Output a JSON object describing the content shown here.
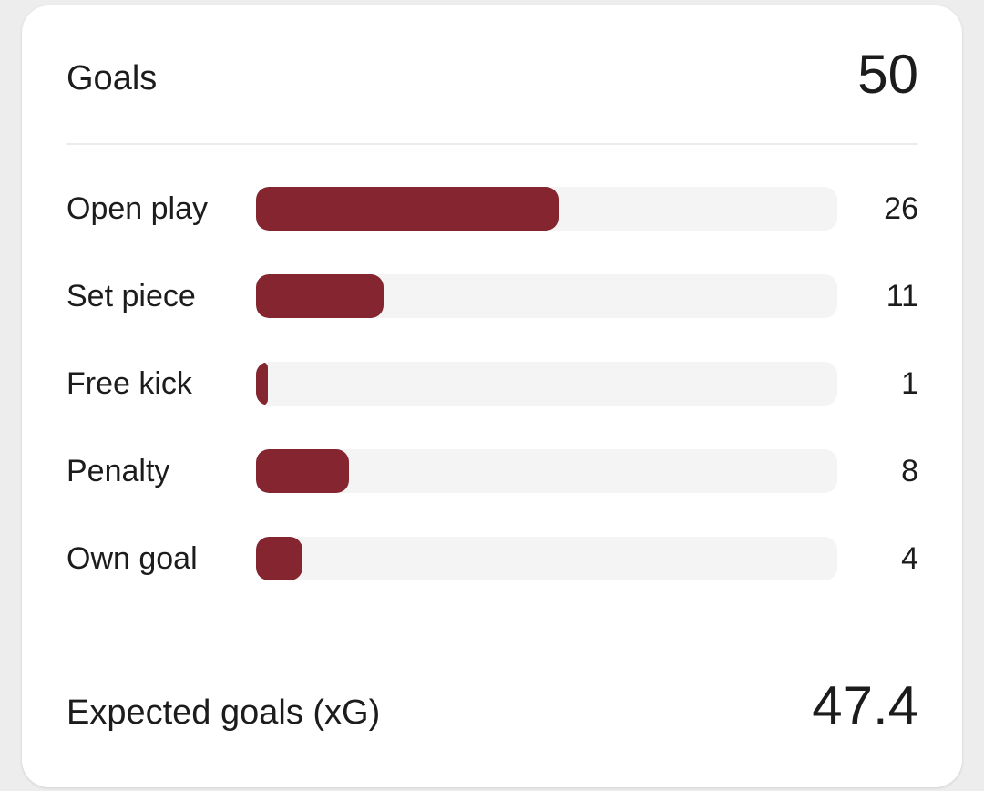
{
  "card": {
    "title": "Goals",
    "total": "50",
    "xg_label": "Expected goals (xG)",
    "xg_value": "47.4"
  },
  "colors": {
    "bar": "#852530",
    "track": "#f4f4f4"
  },
  "chart_data": {
    "type": "bar",
    "orientation": "horizontal",
    "categories": [
      "Open play",
      "Set piece",
      "Free kick",
      "Penalty",
      "Own goal"
    ],
    "values": [
      26,
      11,
      1,
      8,
      4
    ],
    "xlim": [
      0,
      50
    ],
    "grid": false
  }
}
